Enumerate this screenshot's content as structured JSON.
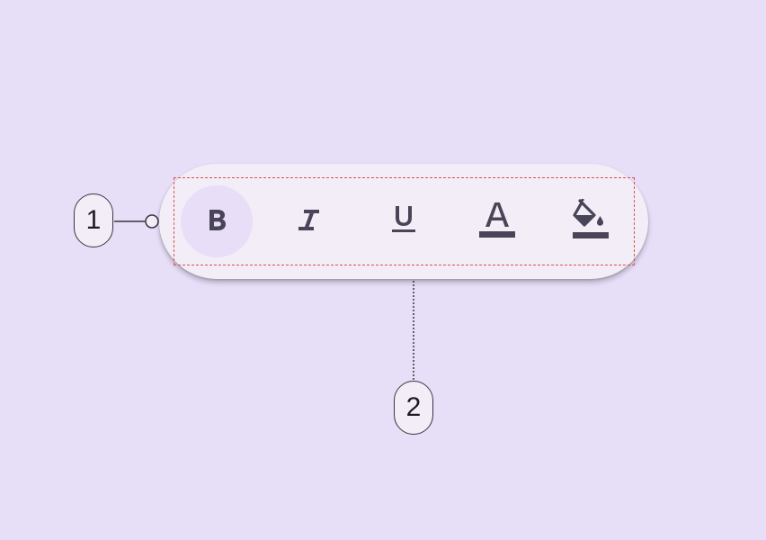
{
  "callouts": {
    "one": "1",
    "two": "2"
  },
  "toolbar": {
    "buttons": [
      {
        "name": "bold-button",
        "icon": "bold-icon",
        "selected": true
      },
      {
        "name": "italic-button",
        "icon": "italic-icon",
        "selected": false
      },
      {
        "name": "underline-button",
        "icon": "underline-icon",
        "selected": false
      },
      {
        "name": "text-color-button",
        "icon": "text-color-icon",
        "selected": false
      },
      {
        "name": "fill-color-button",
        "icon": "fill-color-icon",
        "selected": false
      }
    ]
  },
  "colors": {
    "background": "#e7def7",
    "container": "#f3edf7",
    "selected_indicator": "#e8def8",
    "icon": "#4a4458",
    "outline_guide": "#d9534f"
  }
}
